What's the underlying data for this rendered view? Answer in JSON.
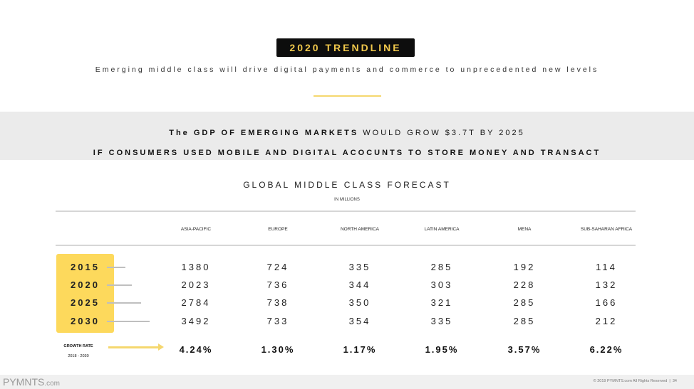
{
  "header": {
    "title": "2020 TRENDLINE",
    "subtitle": "Emerging middle class will drive digital payments and commerce to unprecedented new levels"
  },
  "band": {
    "line1_bold": "The GDP OF EMERGING MARKETS",
    "line1_rest": " WOULD GROW $3.7T BY 2025",
    "line2": "IF CONSUMERS USED MOBILE AND DIGITAL ACOCUNTS TO STORE MONEY AND TRANSACT"
  },
  "table": {
    "title": "GLOBAL MIDDLE CLASS FORECAST",
    "units": "IN MILLIONS",
    "columns": [
      "ASIA-PACIFIC",
      "EUROPE",
      "NORTH AMERICA",
      "LATIN AMERICA",
      "MENA",
      "SUB-SAHARAN AFRICA"
    ],
    "rows": [
      {
        "year": "2015",
        "values": [
          "1380",
          "724",
          "335",
          "285",
          "192",
          "114"
        ]
      },
      {
        "year": "2020",
        "values": [
          "2023",
          "736",
          "344",
          "303",
          "228",
          "132"
        ]
      },
      {
        "year": "2025",
        "values": [
          "2784",
          "738",
          "350",
          "321",
          "285",
          "166"
        ]
      },
      {
        "year": "2030",
        "values": [
          "3492",
          "733",
          "354",
          "335",
          "285",
          "212"
        ]
      }
    ],
    "growth_label": "GROWTH RATE",
    "growth_period": "2018 - 2030",
    "growth": [
      "4.24%",
      "1.30%",
      "1.17%",
      "1.95%",
      "3.57%",
      "6.22%"
    ]
  },
  "colors": {
    "accent": "#fdd95c",
    "title_bg": "#0d0d0d",
    "title_text": "#f2c94c",
    "band": "#ebebeb"
  },
  "footer": {
    "logo": "PYMNTS",
    "logo_suffix": ".com",
    "copyright": "© 2019 PYMNTS.com All Rights Reserved",
    "page": "34"
  }
}
